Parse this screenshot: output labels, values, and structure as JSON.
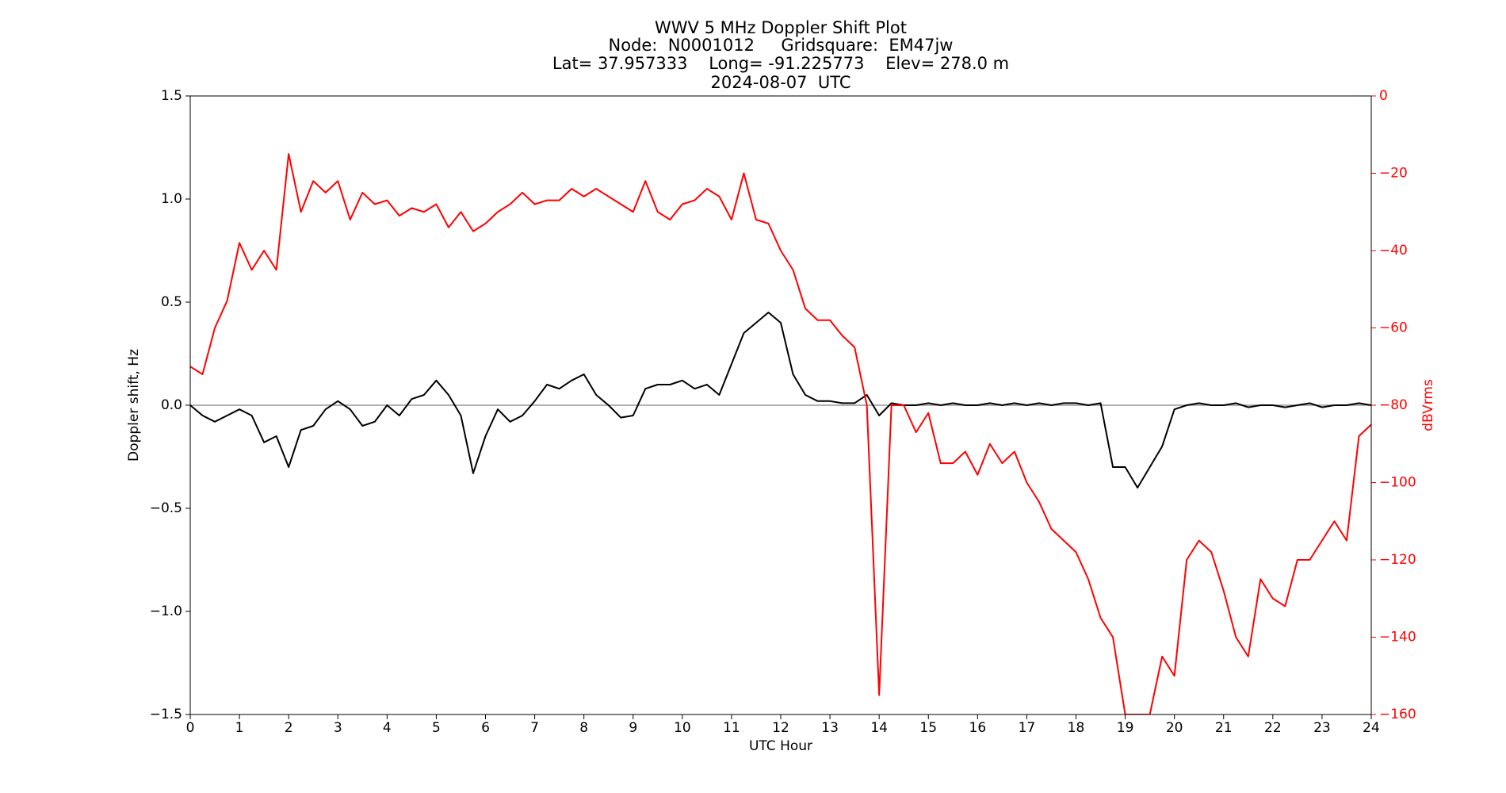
{
  "chart_data": {
    "type": "line",
    "title": [
      "WWV 5 MHz Doppler Shift Plot",
      "Node:  N0001012     Gridsquare:  EM47jw",
      "Lat= 37.957333    Long= -91.225773    Elev= 278.0 m",
      "2024-08-07  UTC"
    ],
    "x_label": "UTC Hour",
    "y_label": "Doppler shift, Hz",
    "y2_label": "dBVrms",
    "xlim": [
      0,
      24
    ],
    "xticks": [
      0,
      1,
      2,
      3,
      4,
      5,
      6,
      7,
      8,
      9,
      10,
      11,
      12,
      13,
      14,
      15,
      16,
      17,
      18,
      19,
      20,
      21,
      22,
      23,
      24
    ],
    "ylim": [
      -1.5,
      1.5
    ],
    "yticks": [
      {
        "value": -1.5,
        "label": "−1.5"
      },
      {
        "value": -1.0,
        "label": "−1.0"
      },
      {
        "value": -0.5,
        "label": "−0.5"
      },
      {
        "value": 0,
        "label": "0.0"
      },
      0.5,
      {
        "value": 1.0,
        "label": "1.0"
      },
      1.5
    ],
    "y2lim": [
      -160,
      0
    ],
    "y2ticks": [
      {
        "value": -160,
        "label": "−160"
      },
      {
        "value": -140,
        "label": "−140"
      },
      {
        "value": -120,
        "label": "−120"
      },
      {
        "value": -100,
        "label": "−100"
      },
      {
        "value": -80,
        "label": "−80"
      },
      {
        "value": -60,
        "label": "−60"
      },
      {
        "value": -40,
        "label": "−40"
      },
      {
        "value": -20,
        "label": "−20"
      },
      0
    ],
    "x": [
      0,
      0.25,
      0.5,
      0.75,
      1,
      1.25,
      1.5,
      1.75,
      2,
      2.25,
      2.5,
      2.75,
      3,
      3.25,
      3.5,
      3.75,
      4,
      4.25,
      4.5,
      4.75,
      5,
      5.25,
      5.5,
      5.75,
      6,
      6.25,
      6.5,
      6.75,
      7,
      7.25,
      7.5,
      7.75,
      8,
      8.25,
      8.5,
      8.75,
      9,
      9.25,
      9.5,
      9.75,
      10,
      10.25,
      10.5,
      10.75,
      11,
      11.25,
      11.5,
      11.75,
      12,
      12.25,
      12.5,
      12.75,
      13,
      13.25,
      13.5,
      13.75,
      14,
      14.25,
      14.5,
      14.75,
      15,
      15.25,
      15.5,
      15.75,
      16,
      16.25,
      16.5,
      16.75,
      17,
      17.25,
      17.5,
      17.75,
      18,
      18.25,
      18.5,
      18.75,
      19,
      19.25,
      19.5,
      19.75,
      20,
      20.25,
      20.5,
      20.75,
      21,
      21.25,
      21.5,
      21.75,
      22,
      22.25,
      22.5,
      22.75,
      23,
      23.25,
      23.5,
      23.75,
      24
    ],
    "series": [
      {
        "color": "#000000",
        "axis": "y",
        "values": [
          0,
          -0.05,
          -0.08,
          -0.05,
          -0.02,
          -0.05,
          -0.18,
          -0.15,
          -0.3,
          -0.12,
          -0.1,
          -0.02,
          0.02,
          -0.02,
          -0.1,
          -0.08,
          0,
          -0.05,
          0.03,
          0.05,
          0.12,
          0.05,
          -0.05,
          -0.33,
          -0.15,
          -0.02,
          -0.08,
          -0.05,
          0.02,
          0.1,
          0.08,
          0.12,
          0.15,
          0.05,
          0,
          -0.06,
          -0.05,
          0.08,
          0.1,
          0.1,
          0.12,
          0.08,
          0.1,
          0.05,
          0.2,
          0.35,
          0.4,
          0.45,
          0.4,
          0.15,
          0.05,
          0.02,
          0.02,
          0.01,
          0.01,
          0.05,
          -0.05,
          0.01,
          0,
          0,
          0.01,
          0,
          0.01,
          0,
          0,
          0.01,
          0,
          0.01,
          0,
          0.01,
          0,
          0.01,
          0.01,
          0,
          0.01,
          -0.3,
          -0.3,
          -0.4,
          -0.3,
          -0.2,
          -0.02,
          0,
          0.01,
          0,
          0,
          0.01,
          -0.01,
          0,
          0,
          -0.01,
          0,
          0.01,
          -0.01,
          0,
          0,
          0.01,
          0
        ]
      },
      {
        "color": "#ff0000",
        "axis": "y2",
        "values": [
          -70,
          -72,
          -60,
          -53,
          -38,
          -45,
          -40,
          -45,
          -15,
          -30,
          -22,
          -25,
          -22,
          -32,
          -25,
          -28,
          -27,
          -31,
          -29,
          -30,
          -28,
          -34,
          -30,
          -35,
          -33,
          -30,
          -28,
          -25,
          -28,
          -27,
          -27,
          -24,
          -26,
          -24,
          -26,
          -28,
          -30,
          -22,
          -30,
          -32,
          -28,
          -27,
          -24,
          -26,
          -32,
          -20,
          -32,
          -33,
          -40,
          -45,
          -55,
          -58,
          -58,
          -62,
          -65,
          -80,
          -155,
          -80,
          -80,
          -87,
          -82,
          -95,
          -95,
          -92,
          -98,
          -90,
          -95,
          -92,
          -100,
          -105,
          -112,
          -115,
          -118,
          -125,
          -135,
          -140,
          -160,
          -160,
          -160,
          -145,
          -150,
          -120,
          -115,
          -118,
          -128,
          -140,
          -145,
          -125,
          -130,
          -132,
          -120,
          -120,
          -115,
          -110,
          -115,
          -88,
          -85
        ]
      }
    ]
  }
}
